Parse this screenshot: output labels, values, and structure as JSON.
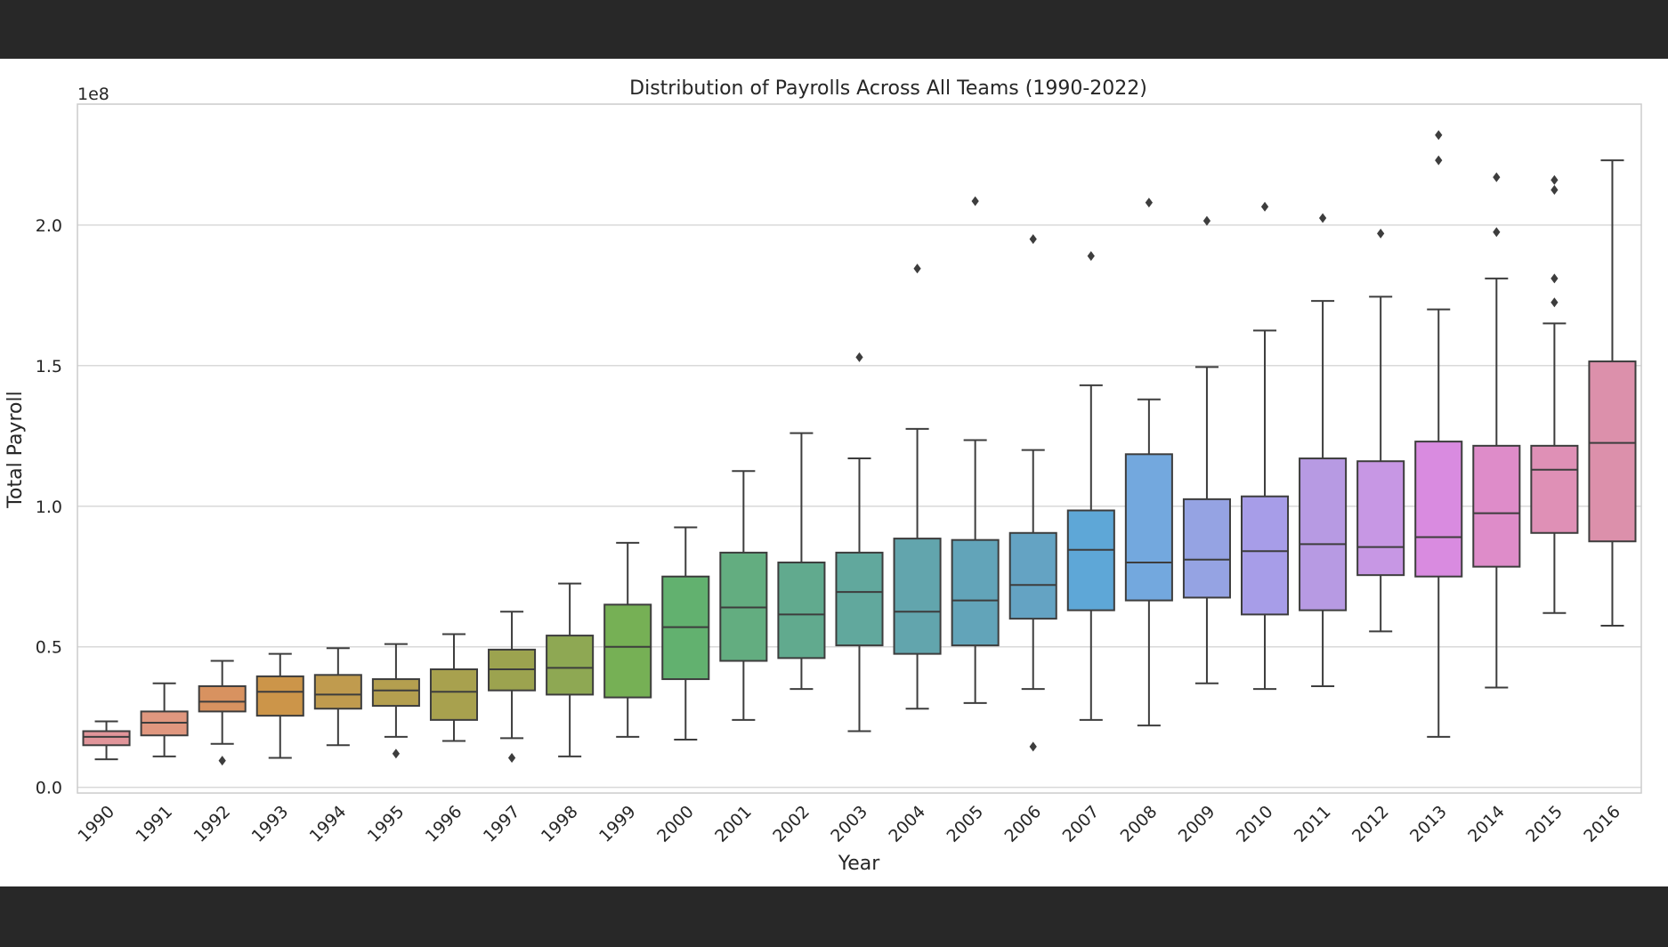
{
  "chart_data": {
    "type": "box",
    "title": "Distribution of Payrolls Across All Teams (1990-2022)",
    "xlabel": "Year",
    "ylabel": "Total Payroll",
    "y_offset_label": "1e8",
    "ylim": [
      -0.02,
      2.43
    ],
    "yticks": [
      {
        "value": 0.0,
        "label": "0.0"
      },
      {
        "value": 0.5,
        "label": "0.5"
      },
      {
        "value": 1.0,
        "label": "1.0"
      },
      {
        "value": 1.5,
        "label": "1.5"
      },
      {
        "value": 2.0,
        "label": "2.0"
      }
    ],
    "grid": true,
    "categories": [
      "1990",
      "1991",
      "1992",
      "1993",
      "1994",
      "1995",
      "1996",
      "1997",
      "1998",
      "1999",
      "2000",
      "2001",
      "2002",
      "2003",
      "2004",
      "2005",
      "2006",
      "2007",
      "2008",
      "2009",
      "2010",
      "2011",
      "2012",
      "2013",
      "2014",
      "2015",
      "2016"
    ],
    "colors": [
      "#e1959a",
      "#e0977f",
      "#d89260",
      "#cc9549",
      "#c09b4e",
      "#b49f4f",
      "#a8a14e",
      "#9ca34f",
      "#8ea853",
      "#76b055",
      "#62b16f",
      "#63ad80",
      "#61aa8e",
      "#61a89d",
      "#62a5ad",
      "#62a4b9",
      "#64a3c3",
      "#5ea7d7",
      "#73a8de",
      "#95a3e3",
      "#a79de8",
      "#b79ae3",
      "#c797e4",
      "#d98be0",
      "#de8cc9",
      "#df90b6",
      "#dc90ab"
    ],
    "boxes": [
      {
        "year": "1990",
        "whislo": 0.1,
        "q1": 0.15,
        "med": 0.18,
        "q3": 0.2,
        "whishi": 0.235,
        "fliers": []
      },
      {
        "year": "1991",
        "whislo": 0.11,
        "q1": 0.185,
        "med": 0.23,
        "q3": 0.27,
        "whishi": 0.37,
        "fliers": []
      },
      {
        "year": "1992",
        "whislo": 0.155,
        "q1": 0.27,
        "med": 0.305,
        "q3": 0.36,
        "whishi": 0.45,
        "fliers": [
          0.095
        ]
      },
      {
        "year": "1993",
        "whislo": 0.105,
        "q1": 0.255,
        "med": 0.34,
        "q3": 0.395,
        "whishi": 0.475,
        "fliers": []
      },
      {
        "year": "1994",
        "whislo": 0.15,
        "q1": 0.28,
        "med": 0.33,
        "q3": 0.4,
        "whishi": 0.495,
        "fliers": []
      },
      {
        "year": "1995",
        "whislo": 0.18,
        "q1": 0.29,
        "med": 0.345,
        "q3": 0.385,
        "whishi": 0.51,
        "fliers": [
          0.12
        ]
      },
      {
        "year": "1996",
        "whislo": 0.165,
        "q1": 0.24,
        "med": 0.34,
        "q3": 0.42,
        "whishi": 0.545,
        "fliers": []
      },
      {
        "year": "1997",
        "whislo": 0.175,
        "q1": 0.345,
        "med": 0.42,
        "q3": 0.49,
        "whishi": 0.625,
        "fliers": [
          0.105
        ]
      },
      {
        "year": "1998",
        "whislo": 0.11,
        "q1": 0.33,
        "med": 0.425,
        "q3": 0.54,
        "whishi": 0.725,
        "fliers": []
      },
      {
        "year": "1999",
        "whislo": 0.18,
        "q1": 0.32,
        "med": 0.5,
        "q3": 0.65,
        "whishi": 0.87,
        "fliers": []
      },
      {
        "year": "2000",
        "whislo": 0.17,
        "q1": 0.385,
        "med": 0.57,
        "q3": 0.75,
        "whishi": 0.925,
        "fliers": []
      },
      {
        "year": "2001",
        "whislo": 0.24,
        "q1": 0.45,
        "med": 0.64,
        "q3": 0.835,
        "whishi": 1.125,
        "fliers": []
      },
      {
        "year": "2002",
        "whislo": 0.35,
        "q1": 0.46,
        "med": 0.615,
        "q3": 0.8,
        "whishi": 1.26,
        "fliers": []
      },
      {
        "year": "2003",
        "whislo": 0.2,
        "q1": 0.505,
        "med": 0.695,
        "q3": 0.835,
        "whishi": 1.17,
        "fliers": [
          1.53
        ]
      },
      {
        "year": "2004",
        "whislo": 0.28,
        "q1": 0.475,
        "med": 0.625,
        "q3": 0.885,
        "whishi": 1.275,
        "fliers": [
          1.845
        ]
      },
      {
        "year": "2005",
        "whislo": 0.3,
        "q1": 0.505,
        "med": 0.665,
        "q3": 0.88,
        "whishi": 1.235,
        "fliers": [
          2.085
        ]
      },
      {
        "year": "2006",
        "whislo": 0.35,
        "q1": 0.6,
        "med": 0.72,
        "q3": 0.905,
        "whishi": 1.2,
        "fliers": [
          0.145,
          1.95
        ]
      },
      {
        "year": "2007",
        "whislo": 0.24,
        "q1": 0.63,
        "med": 0.845,
        "q3": 0.985,
        "whishi": 1.43,
        "fliers": [
          1.89
        ]
      },
      {
        "year": "2008",
        "whislo": 0.22,
        "q1": 0.665,
        "med": 0.8,
        "q3": 1.185,
        "whishi": 1.38,
        "fliers": [
          2.08
        ]
      },
      {
        "year": "2009",
        "whislo": 0.37,
        "q1": 0.675,
        "med": 0.81,
        "q3": 1.025,
        "whishi": 1.495,
        "fliers": [
          2.015
        ]
      },
      {
        "year": "2010",
        "whislo": 0.35,
        "q1": 0.615,
        "med": 0.84,
        "q3": 1.035,
        "whishi": 1.625,
        "fliers": [
          2.065
        ]
      },
      {
        "year": "2011",
        "whislo": 0.36,
        "q1": 0.63,
        "med": 0.865,
        "q3": 1.17,
        "whishi": 1.73,
        "fliers": [
          2.025
        ]
      },
      {
        "year": "2012",
        "whislo": 0.555,
        "q1": 0.755,
        "med": 0.855,
        "q3": 1.16,
        "whishi": 1.745,
        "fliers": [
          1.97
        ]
      },
      {
        "year": "2013",
        "whislo": 0.18,
        "q1": 0.75,
        "med": 0.89,
        "q3": 1.23,
        "whishi": 1.7,
        "fliers": [
          2.23,
          2.32
        ]
      },
      {
        "year": "2014",
        "whislo": 0.355,
        "q1": 0.785,
        "med": 0.975,
        "q3": 1.215,
        "whishi": 1.81,
        "fliers": [
          1.975,
          2.17
        ]
      },
      {
        "year": "2015",
        "whislo": 0.62,
        "q1": 0.905,
        "med": 1.13,
        "q3": 1.215,
        "whishi": 1.65,
        "fliers": [
          1.725,
          1.81,
          2.125,
          2.16
        ]
      },
      {
        "year": "2016",
        "whislo": 0.575,
        "q1": 0.875,
        "med": 1.225,
        "q3": 1.515,
        "whishi": 2.23,
        "fliers": []
      }
    ]
  }
}
